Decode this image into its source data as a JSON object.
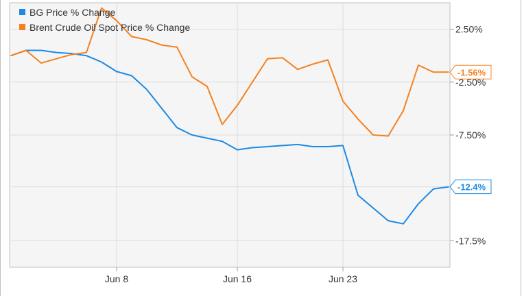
{
  "chart_data": {
    "type": "line",
    "title": "",
    "xlabel": "",
    "ylabel": "",
    "x": [
      "Jun 1",
      "Jun 2",
      "Jun 3",
      "Jun 4",
      "Jun 5",
      "Jun 6",
      "Jun 7",
      "Jun 8",
      "Jun 9",
      "Jun 10",
      "Jun 11",
      "Jun 12",
      "Jun 13",
      "Jun 14",
      "Jun 15",
      "Jun 16",
      "Jun 17",
      "Jun 18",
      "Jun 19",
      "Jun 20",
      "Jun 21",
      "Jun 22",
      "Jun 23",
      "Jun 24",
      "Jun 25",
      "Jun 26",
      "Jun 27",
      "Jun 28",
      "Jun 29",
      "Jun 30"
    ],
    "x_ticks": [
      "Jun 8",
      "Jun 16",
      "Jun 23"
    ],
    "y_ticks": [
      "2.50%",
      "-2.50%",
      "-7.50%",
      "-12.4%",
      "-17.5%"
    ],
    "ylim": [
      -20.0,
      5.0
    ],
    "grid": true,
    "legend_position": "top-left",
    "series": [
      {
        "name": "BG Price % Change",
        "color": "#1a8ae6",
        "end_label": "-12.4%",
        "values": [
          0.0,
          0.5,
          0.5,
          0.3,
          0.2,
          0.0,
          -0.6,
          -1.5,
          -1.9,
          -3.2,
          -5.0,
          -6.8,
          -7.5,
          -7.8,
          -8.1,
          -8.9,
          -8.7,
          -8.6,
          -8.5,
          -8.4,
          -8.6,
          -8.6,
          -8.5,
          -13.2,
          -14.4,
          -15.6,
          -15.9,
          -14.0,
          -12.6,
          -12.4
        ]
      },
      {
        "name": "Brent Crude Oil Spot Price % Change",
        "color": "#f4811f",
        "end_label": "-1.56%",
        "values": [
          0.0,
          0.5,
          -0.7,
          -0.3,
          0.1,
          0.3,
          4.5,
          3.3,
          1.8,
          1.5,
          1.0,
          0.8,
          -2.0,
          -2.9,
          -6.5,
          -4.7,
          -2.5,
          -0.3,
          -0.2,
          -1.3,
          -0.8,
          -0.4,
          -4.3,
          -6.0,
          -7.5,
          -7.6,
          -5.2,
          -0.9,
          -1.56,
          -1.56
        ]
      }
    ]
  }
}
